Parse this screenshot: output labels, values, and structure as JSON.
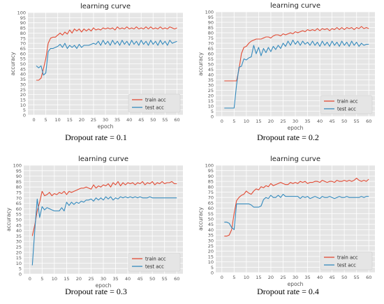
{
  "common": {
    "title": "learning curve",
    "xlabel": "epoch",
    "ylabel": "accuracy",
    "legend": [
      "train acc",
      "test acc"
    ],
    "colors": {
      "train": "#e24a33",
      "test": "#348abd",
      "plot_bg": "#e5e5e5",
      "grid": "#ffffff",
      "tick": "#555555"
    },
    "xticks": [
      0,
      5,
      10,
      15,
      20,
      25,
      30,
      35,
      40,
      45,
      50,
      55,
      60
    ],
    "yticks": [
      0,
      5,
      10,
      15,
      20,
      25,
      30,
      35,
      40,
      45,
      50,
      55,
      60,
      65,
      70,
      75,
      80,
      85,
      90,
      95,
      100
    ]
  },
  "chart_data": [
    {
      "type": "line",
      "title": "learning curve",
      "caption": "Dropout rate = 0.1",
      "xlabel": "epoch",
      "ylabel": "accuracy",
      "xlim": [
        -2.5,
        62.5
      ],
      "ylim": [
        0,
        100
      ],
      "legend_position": "bottom-right",
      "series": [
        {
          "name": "train acc",
          "color": "#e24a33",
          "x": [
            1,
            2,
            3,
            4,
            5,
            6,
            7,
            8,
            9,
            10,
            11,
            12,
            13,
            14,
            15,
            16,
            17,
            18,
            19,
            20,
            21,
            22,
            23,
            24,
            25,
            26,
            27,
            28,
            29,
            30,
            31,
            32,
            33,
            34,
            35,
            36,
            37,
            38,
            39,
            40,
            41,
            42,
            43,
            44,
            45,
            46,
            47,
            48,
            49,
            50,
            51,
            52,
            53,
            54,
            55,
            56,
            57,
            58,
            59,
            60
          ],
          "values": [
            34,
            34,
            36,
            45,
            55,
            70,
            75,
            76,
            76,
            78,
            80,
            78,
            81,
            79,
            83,
            80,
            84,
            82,
            84,
            81,
            84,
            82,
            84,
            82,
            85,
            83,
            84,
            83,
            85,
            84,
            85,
            84,
            85,
            83,
            86,
            84,
            85,
            84,
            86,
            84,
            85,
            84,
            86,
            84,
            85,
            84,
            86,
            84,
            86,
            84,
            85,
            84,
            86,
            84,
            85,
            84,
            86,
            85,
            84,
            85
          ]
        },
        {
          "name": "test acc",
          "color": "#348abd",
          "x": [
            1,
            2,
            3,
            4,
            5,
            6,
            7,
            8,
            9,
            10,
            11,
            12,
            13,
            14,
            15,
            16,
            17,
            18,
            19,
            20,
            21,
            22,
            23,
            24,
            25,
            26,
            27,
            28,
            29,
            30,
            31,
            32,
            33,
            34,
            35,
            36,
            37,
            38,
            39,
            40,
            41,
            42,
            43,
            44,
            45,
            46,
            47,
            48,
            49,
            50,
            51,
            52,
            53,
            54,
            55,
            56,
            57,
            58,
            59,
            60
          ],
          "values": [
            48,
            46,
            48,
            39,
            41,
            62,
            65,
            65,
            66,
            67,
            69,
            66,
            70,
            65,
            68,
            66,
            68,
            65,
            69,
            66,
            68,
            68,
            68,
            69,
            70,
            69,
            72,
            68,
            73,
            69,
            72,
            68,
            73,
            69,
            72,
            68,
            73,
            69,
            72,
            68,
            73,
            69,
            72,
            68,
            73,
            69,
            72,
            68,
            73,
            69,
            72,
            68,
            73,
            69,
            72,
            68,
            73,
            70,
            71,
            72
          ]
        }
      ]
    },
    {
      "type": "line",
      "title": "learning curve",
      "caption": "Dropout rate = 0.2",
      "xlabel": "epoch",
      "ylabel": "accuracy",
      "xlim": [
        -2.5,
        62.5
      ],
      "ylim": [
        0,
        100
      ],
      "legend_position": "bottom-right",
      "series": [
        {
          "name": "train acc",
          "color": "#e24a33",
          "x": [
            1,
            2,
            3,
            4,
            5,
            6,
            7,
            8,
            9,
            10,
            11,
            12,
            13,
            14,
            15,
            16,
            17,
            18,
            19,
            20,
            21,
            22,
            23,
            24,
            25,
            26,
            27,
            28,
            29,
            30,
            31,
            32,
            33,
            34,
            35,
            36,
            37,
            38,
            39,
            40,
            41,
            42,
            43,
            44,
            45,
            46,
            47,
            48,
            49,
            50,
            51,
            52,
            53,
            54,
            55,
            56,
            57,
            58,
            59,
            60
          ],
          "values": [
            34,
            34,
            34,
            34,
            34,
            34,
            45,
            60,
            66,
            67,
            70,
            72,
            73,
            74,
            74,
            74,
            75,
            76,
            76,
            75,
            77,
            78,
            78,
            77,
            79,
            78,
            79,
            80,
            79,
            81,
            80,
            81,
            82,
            81,
            83,
            82,
            83,
            82,
            84,
            82,
            84,
            83,
            84,
            82,
            84,
            83,
            85,
            83,
            85,
            83,
            85,
            84,
            85,
            83,
            85,
            84,
            86,
            84,
            85,
            84
          ]
        },
        {
          "name": "test acc",
          "color": "#348abd",
          "x": [
            1,
            2,
            3,
            4,
            5,
            6,
            7,
            8,
            9,
            10,
            11,
            12,
            13,
            14,
            15,
            16,
            17,
            18,
            19,
            20,
            21,
            22,
            23,
            24,
            25,
            26,
            27,
            28,
            29,
            30,
            31,
            32,
            33,
            34,
            35,
            36,
            37,
            38,
            39,
            40,
            41,
            42,
            43,
            44,
            45,
            46,
            47,
            48,
            49,
            50,
            51,
            52,
            53,
            54,
            55,
            56,
            57,
            58,
            59,
            60
          ],
          "values": [
            8,
            8,
            8,
            8,
            8,
            30,
            47,
            48,
            55,
            54,
            56,
            57,
            68,
            60,
            66,
            58,
            65,
            61,
            66,
            62,
            67,
            64,
            68,
            65,
            70,
            67,
            72,
            68,
            73,
            69,
            72,
            68,
            72,
            69,
            71,
            68,
            72,
            68,
            71,
            67,
            72,
            68,
            71,
            67,
            72,
            68,
            71,
            67,
            72,
            68,
            71,
            67,
            72,
            68,
            71,
            67,
            70,
            68,
            69,
            69
          ]
        }
      ]
    },
    {
      "type": "line",
      "title": "learning curve",
      "caption": "Dropout rate = 0.3",
      "xlabel": "epoch",
      "ylabel": "accuracy",
      "xlim": [
        -2.5,
        62.5
      ],
      "ylim": [
        0,
        100
      ],
      "legend_position": "bottom-right",
      "series": [
        {
          "name": "train acc",
          "color": "#e24a33",
          "x": [
            1,
            2,
            3,
            4,
            5,
            6,
            7,
            8,
            9,
            10,
            11,
            12,
            13,
            14,
            15,
            16,
            17,
            18,
            19,
            20,
            21,
            22,
            23,
            24,
            25,
            26,
            27,
            28,
            29,
            30,
            31,
            32,
            33,
            34,
            35,
            36,
            37,
            38,
            39,
            40,
            41,
            42,
            43,
            44,
            45,
            46,
            47,
            48,
            49,
            50,
            51,
            52,
            53,
            54,
            55,
            56,
            57,
            58,
            59,
            60
          ],
          "values": [
            35,
            45,
            58,
            66,
            76,
            72,
            73,
            75,
            72,
            74,
            73,
            75,
            74,
            76,
            73,
            76,
            75,
            76,
            77,
            78,
            79,
            79,
            80,
            79,
            78,
            82,
            79,
            81,
            80,
            82,
            81,
            83,
            80,
            84,
            82,
            85,
            81,
            84,
            82,
            84,
            83,
            84,
            82,
            84,
            83,
            85,
            82,
            84,
            83,
            85,
            82,
            84,
            83,
            85,
            83,
            84,
            84,
            85,
            83,
            83
          ]
        },
        {
          "name": "test acc",
          "color": "#348abd",
          "x": [
            1,
            2,
            3,
            4,
            5,
            6,
            7,
            8,
            9,
            10,
            11,
            12,
            13,
            14,
            15,
            16,
            17,
            18,
            19,
            20,
            21,
            22,
            23,
            24,
            25,
            26,
            27,
            28,
            29,
            30,
            31,
            32,
            33,
            34,
            35,
            36,
            37,
            38,
            39,
            40,
            41,
            42,
            43,
            44,
            45,
            46,
            47,
            48,
            49,
            50,
            51,
            52,
            53,
            54,
            55,
            56,
            57,
            58,
            59,
            60
          ],
          "values": [
            8,
            40,
            69,
            52,
            62,
            59,
            61,
            60,
            59,
            58,
            58,
            58,
            61,
            58,
            66,
            63,
            66,
            64,
            66,
            65,
            67,
            66,
            68,
            68,
            69,
            67,
            70,
            68,
            70,
            68,
            71,
            69,
            71,
            68,
            70,
            69,
            71,
            70,
            71,
            70,
            71,
            70,
            71,
            70,
            71,
            70,
            70,
            70,
            71,
            70,
            70,
            70,
            70,
            70,
            70,
            70,
            70,
            70,
            70,
            70
          ]
        }
      ]
    },
    {
      "type": "line",
      "title": "learning curve",
      "caption": "Dropout rate = 0.4",
      "xlabel": "epoch",
      "ylabel": "accuracy",
      "xlim": [
        -2.5,
        62.5
      ],
      "ylim": [
        0,
        100
      ],
      "legend_position": "bottom-right",
      "series": [
        {
          "name": "train acc",
          "color": "#e24a33",
          "x": [
            1,
            2,
            3,
            4,
            5,
            6,
            7,
            8,
            9,
            10,
            11,
            12,
            13,
            14,
            15,
            16,
            17,
            18,
            19,
            20,
            21,
            22,
            23,
            24,
            25,
            26,
            27,
            28,
            29,
            30,
            31,
            32,
            33,
            34,
            35,
            36,
            37,
            38,
            39,
            40,
            41,
            42,
            43,
            44,
            45,
            46,
            47,
            48,
            49,
            50,
            51,
            52,
            53,
            54,
            55,
            56,
            57,
            58,
            59,
            60
          ],
          "values": [
            34,
            34,
            35,
            40,
            55,
            67,
            70,
            72,
            73,
            76,
            74,
            73,
            76,
            78,
            77,
            80,
            79,
            81,
            80,
            83,
            81,
            82,
            83,
            84,
            83,
            82,
            82,
            84,
            83,
            84,
            83,
            85,
            84,
            85,
            83,
            84,
            84,
            85,
            85,
            84,
            86,
            85,
            84,
            85,
            85,
            84,
            86,
            85,
            85,
            86,
            85,
            86,
            85,
            86,
            88,
            86,
            85,
            86,
            85,
            87
          ]
        },
        {
          "name": "test acc",
          "color": "#348abd",
          "x": [
            1,
            2,
            3,
            4,
            5,
            6,
            7,
            8,
            9,
            10,
            11,
            12,
            13,
            14,
            15,
            16,
            17,
            18,
            19,
            20,
            21,
            22,
            23,
            24,
            25,
            26,
            27,
            28,
            29,
            30,
            31,
            32,
            33,
            34,
            35,
            36,
            37,
            38,
            39,
            40,
            41,
            42,
            43,
            44,
            45,
            46,
            47,
            48,
            49,
            50,
            51,
            52,
            53,
            54,
            55,
            56,
            57,
            58,
            59,
            60
          ],
          "values": [
            47,
            47,
            46,
            42,
            40,
            64,
            64,
            64,
            64,
            64,
            64,
            63,
            61,
            61,
            61,
            62,
            68,
            70,
            69,
            72,
            70,
            70,
            72,
            70,
            73,
            71,
            71,
            71,
            71,
            71,
            71,
            69,
            71,
            70,
            71,
            69,
            70,
            71,
            70,
            69,
            71,
            70,
            70,
            71,
            70,
            69,
            70,
            71,
            70,
            70,
            71,
            70,
            70,
            70,
            70,
            70,
            71,
            70,
            71,
            71
          ]
        }
      ]
    }
  ]
}
